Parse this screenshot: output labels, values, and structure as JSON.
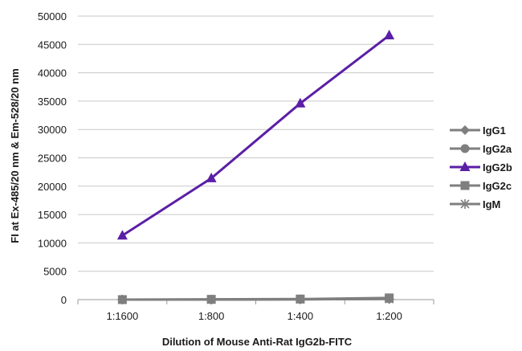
{
  "chart_data": {
    "type": "line",
    "categories": [
      "1:1600",
      "1:800",
      "1:400",
      "1:200"
    ],
    "xlabel": "Dilution of Mouse Anti-Rat IgG2b-FITC",
    "ylabel": "FI at Ex-485/20 nm & Em-528/20 nm",
    "ylim": [
      0,
      50000
    ],
    "yticks": [
      0,
      5000,
      10000,
      15000,
      20000,
      25000,
      30000,
      35000,
      40000,
      45000,
      50000
    ],
    "grid": true,
    "legend_position": "right",
    "series": [
      {
        "name": "IgG1",
        "values": [
          0,
          0,
          50,
          150
        ],
        "color": "#7f7f7f",
        "marker": "diamond"
      },
      {
        "name": "IgG2a",
        "values": [
          0,
          0,
          50,
          150
        ],
        "color": "#7f7f7f",
        "marker": "circle"
      },
      {
        "name": "IgG2b",
        "values": [
          11300,
          21400,
          34600,
          46600
        ],
        "color": "#5b1fa6",
        "marker": "triangle"
      },
      {
        "name": "IgG2c",
        "values": [
          0,
          50,
          100,
          300
        ],
        "color": "#7f7f7f",
        "marker": "square"
      },
      {
        "name": "IgM",
        "values": [
          0,
          0,
          50,
          100
        ],
        "color": "#7f7f7f",
        "marker": "star"
      }
    ]
  }
}
